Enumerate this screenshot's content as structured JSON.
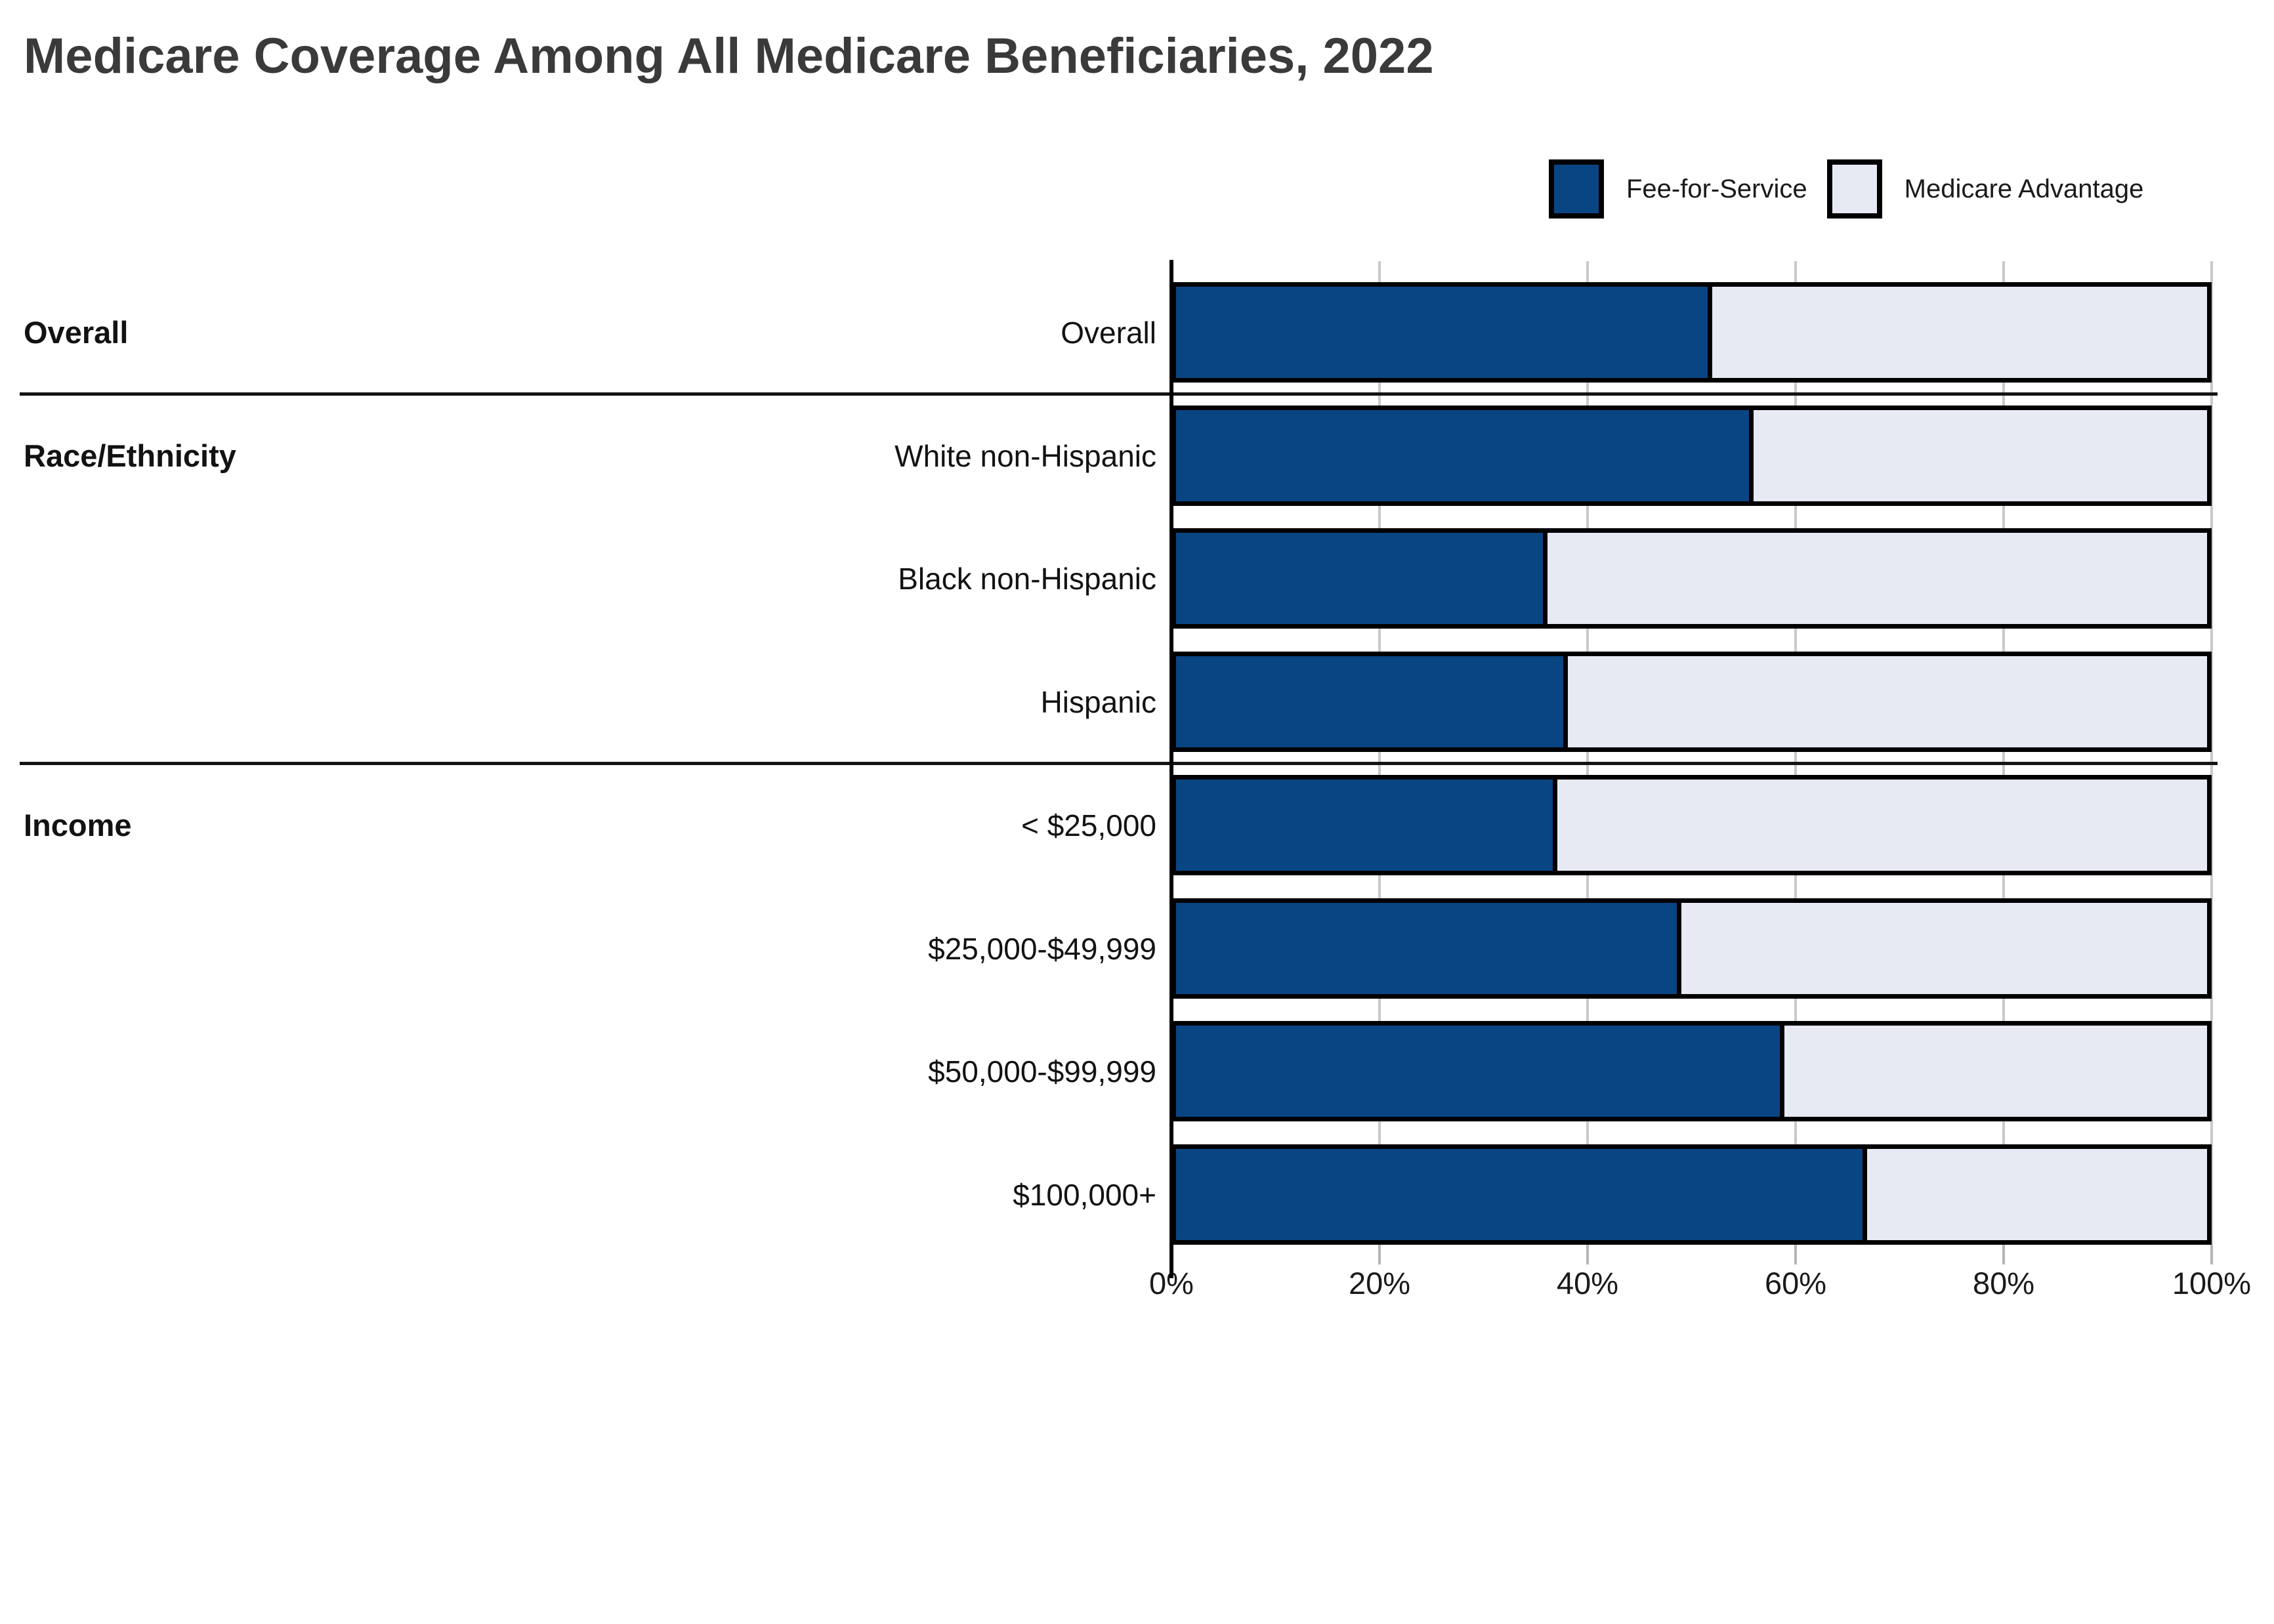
{
  "title": "Medicare Coverage Among All Medicare Beneficiaries, 2022",
  "legend": [
    {
      "label": "Fee-for-Service",
      "color": "#0a4583"
    },
    {
      "label": "Medicare Advantage",
      "color": "#e7eaf2"
    }
  ],
  "chart_data": {
    "type": "bar",
    "orientation": "horizontal",
    "stacked": true,
    "title": "Medicare Coverage Among All Medicare Beneficiaries, 2022",
    "categories": [
      "Overall",
      "White non-Hispanic",
      "Black non-Hispanic",
      "Hispanic",
      "< $25,000",
      "$25,000-$49,999",
      "$50,000-$99,999",
      "$100,000+"
    ],
    "groups": [
      {
        "label": "Overall",
        "start_row": 0
      },
      {
        "label": "Race/Ethnicity",
        "start_row": 1
      },
      {
        "label": "Income",
        "start_row": 4
      }
    ],
    "series": [
      {
        "name": "Fee-for-Service",
        "color": "#0a4583",
        "values": [
          52,
          56,
          36,
          38,
          37,
          49,
          59,
          67
        ]
      },
      {
        "name": "Medicare Advantage",
        "color": "#e7eaf2",
        "values": [
          48,
          44,
          64,
          62,
          63,
          51,
          41,
          33
        ]
      }
    ],
    "x_axis": {
      "min": 0,
      "max": 100,
      "tick_labels": [
        "0%",
        "20%",
        "40%",
        "60%",
        "80%",
        "100%"
      ]
    },
    "grid": true,
    "legend_position": "top-right",
    "colors": {
      "grid": "#c9c9c9",
      "border": "#000000",
      "separator": "#141414",
      "title_text": "#3a3a3a",
      "label_text": "#121212"
    }
  }
}
